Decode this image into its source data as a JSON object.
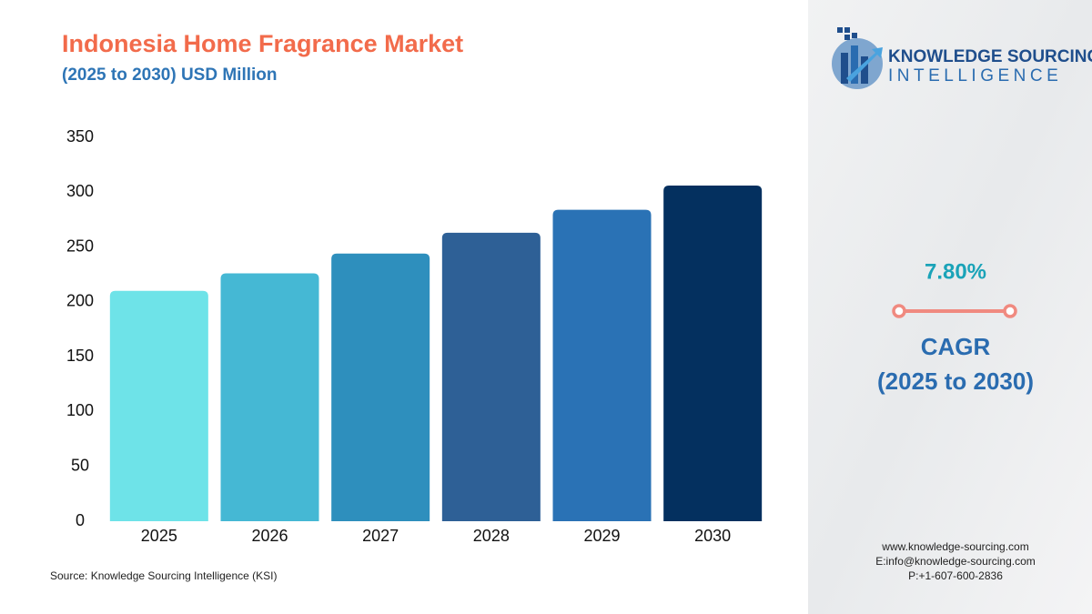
{
  "chart_data": {
    "type": "bar",
    "title": "Indonesia Home Fragrance Market",
    "subtitle": "(2025 to 2030) USD Million",
    "categories": [
      "2025",
      "2026",
      "2027",
      "2028",
      "2029",
      "2030"
    ],
    "values": [
      210,
      226,
      244,
      263,
      284,
      306
    ],
    "colors": [
      "#6ee3e8",
      "#45b8d4",
      "#2e8fbd",
      "#2e6096",
      "#2a72b5",
      "#04305f"
    ],
    "ylim": [
      0,
      350
    ],
    "yticks": [
      0,
      50,
      100,
      150,
      200,
      250,
      300,
      350
    ],
    "grid": false,
    "source": "Source: Knowledge Sourcing Intelligence (KSI)"
  },
  "logo": {
    "line1": "KNOWLEDGE SOURCING",
    "line2": "INTELLIGENCE"
  },
  "cagr": {
    "value": "7.80%",
    "label": "CAGR",
    "period": "(2025 to 2030)"
  },
  "contact": [
    "www.knowledge-sourcing.com",
    "E:info@knowledge-sourcing.com",
    "P:+1-607-600-2836"
  ]
}
